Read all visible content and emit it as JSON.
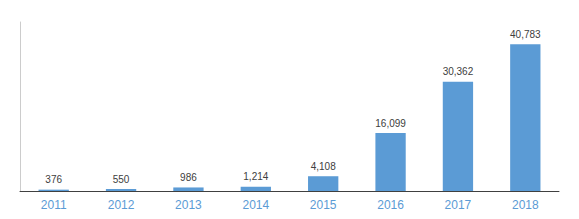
{
  "chart_data": {
    "type": "bar",
    "categories": [
      "2011",
      "2012",
      "2013",
      "2014",
      "2015",
      "2016",
      "2017",
      "2018"
    ],
    "values": [
      376,
      550,
      986,
      1214,
      4108,
      16099,
      30362,
      40783
    ],
    "value_labels": [
      "376",
      "550",
      "986",
      "1,214",
      "4,108",
      "16,099",
      "30,362",
      "40,783"
    ],
    "color": "#5b9bd5",
    "ylim": [
      0,
      47000
    ],
    "grid": false,
    "data_labels": true,
    "tick_labels": "x"
  }
}
